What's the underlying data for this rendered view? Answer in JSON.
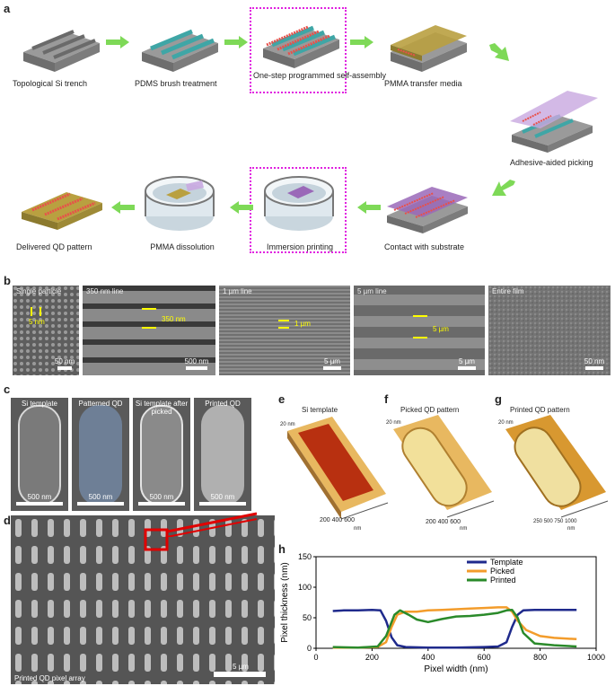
{
  "panel_letters": {
    "a": "a",
    "b": "b",
    "c": "c",
    "d": "d",
    "e": "e",
    "f": "f",
    "g": "g",
    "h": "h"
  },
  "panel_a": {
    "steps": [
      "Topological Si trench",
      "PDMS brush treatment",
      "One-step programmed self-assembly",
      "PMMA transfer media",
      "Adhesive-aided picking",
      "Contact with substrate",
      "Immersion printing",
      "PMMA dissolution",
      "Delivered QD pattern"
    ],
    "colors": {
      "silicon": "#8a8a8a",
      "pdms": "#3fa6a6",
      "qd": "#e8504a",
      "pmma": "#b9a040",
      "highlight": "#e020e0",
      "arrow": "#7ed957"
    }
  },
  "panel_b": {
    "tiles": [
      {
        "label": "Single particle",
        "measure": "5 nm",
        "scale": "50 nm"
      },
      {
        "label": "350 nm line",
        "measure": "350 nm",
        "scale": "500 nm"
      },
      {
        "label": "1 µm line",
        "measure": "1 µm",
        "scale": "5 µm"
      },
      {
        "label": "5 µm line",
        "measure": "5 µm",
        "scale": "5 µm"
      },
      {
        "label": "Entire film",
        "measure": "",
        "scale": "50 nm"
      }
    ]
  },
  "panel_c": {
    "tiles": [
      {
        "label": "Si template",
        "scale": "500 nm"
      },
      {
        "label": "Patterned QD",
        "scale": "500 nm"
      },
      {
        "label": "Si template after picked",
        "scale": "500 nm"
      },
      {
        "label": "Printed QD",
        "scale": "500 nm"
      }
    ]
  },
  "panel_d": {
    "label": "Printed QD pixel array",
    "scale": "5 µm"
  },
  "panel_efg": [
    {
      "title": "Si template",
      "axis_label": "nm",
      "ticks": [
        "200",
        "400",
        "600"
      ],
      "z_ticks": [
        "20 nm"
      ]
    },
    {
      "title": "Picked QD pattern",
      "axis_label": "nm",
      "ticks": [
        "200",
        "400",
        "600"
      ],
      "z_ticks": [
        "20 nm"
      ]
    },
    {
      "title": "Printed QD pattern",
      "axis_label": "nm",
      "ticks": [
        "250",
        "500",
        "750",
        "1000"
      ],
      "z_ticks": [
        "20 nm"
      ]
    }
  ],
  "chart_data": {
    "type": "line",
    "xlabel": "Pixel width (nm)",
    "ylabel": "Pixel thickness (nm)",
    "xlim": [
      0,
      1000
    ],
    "ylim": [
      0,
      150
    ],
    "xticks": [
      0,
      200,
      400,
      600,
      800,
      1000
    ],
    "yticks": [
      0,
      50,
      100,
      150
    ],
    "legend_position": "top-right",
    "series": [
      {
        "name": "Template",
        "color": "#1f2a8c",
        "x": [
          60,
          100,
          150,
          200,
          230,
          250,
          270,
          290,
          320,
          400,
          500,
          600,
          650,
          680,
          700,
          720,
          740,
          780,
          850,
          930
        ],
        "y": [
          61,
          62,
          62,
          63,
          62,
          45,
          18,
          5,
          2,
          1,
          1,
          2,
          3,
          10,
          35,
          55,
          62,
          63,
          63,
          63
        ]
      },
      {
        "name": "Picked",
        "color": "#f39c2b",
        "x": [
          60,
          150,
          220,
          250,
          270,
          290,
          320,
          360,
          400,
          450,
          500,
          550,
          600,
          650,
          680,
          700,
          720,
          750,
          800,
          850,
          930
        ],
        "y": [
          1,
          1,
          2,
          10,
          35,
          55,
          60,
          60,
          62,
          63,
          64,
          65,
          66,
          67,
          67,
          60,
          45,
          30,
          20,
          17,
          15
        ]
      },
      {
        "name": "Printed",
        "color": "#2a8a2a",
        "x": [
          60,
          150,
          220,
          250,
          280,
          300,
          330,
          360,
          400,
          450,
          500,
          550,
          600,
          650,
          680,
          700,
          720,
          740,
          780,
          850,
          930
        ],
        "y": [
          2,
          1,
          3,
          20,
          55,
          62,
          55,
          47,
          43,
          48,
          52,
          53,
          55,
          58,
          62,
          63,
          50,
          25,
          8,
          5,
          3
        ]
      }
    ]
  }
}
